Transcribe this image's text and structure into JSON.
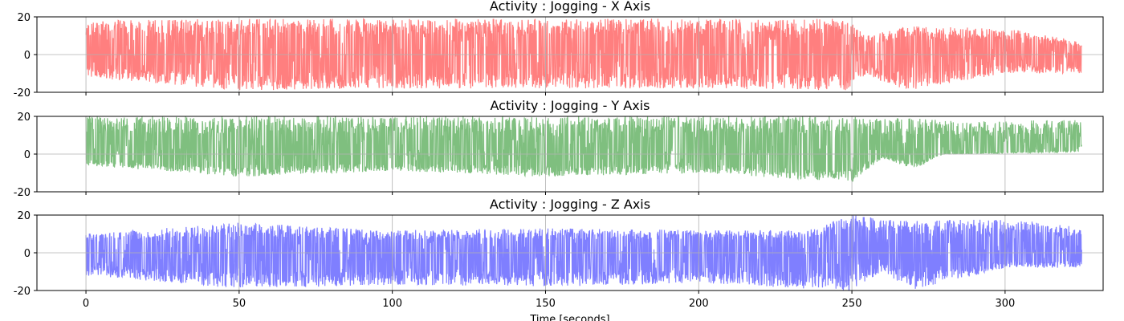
{
  "chart_data": [
    {
      "type": "line",
      "title": "Activity : Jogging - X Axis",
      "color": "#ff0000",
      "opacity": 0.5,
      "xlim": [
        -16,
        332
      ],
      "ylim": [
        -20,
        20
      ],
      "xticks": [
        0,
        50,
        100,
        150,
        200,
        250,
        300
      ],
      "yticks": [
        -20,
        0,
        20
      ],
      "grid": true,
      "x_end": 325,
      "envelope": [
        {
          "x": 0,
          "low": -12,
          "high": 18
        },
        {
          "x": 50,
          "low": -19,
          "high": 19
        },
        {
          "x": 100,
          "low": -18,
          "high": 19
        },
        {
          "x": 150,
          "low": -18,
          "high": 19
        },
        {
          "x": 200,
          "low": -18,
          "high": 19
        },
        {
          "x": 248,
          "low": -19,
          "high": 19
        },
        {
          "x": 255,
          "low": -11,
          "high": 10
        },
        {
          "x": 268,
          "low": -19,
          "high": 15
        },
        {
          "x": 300,
          "low": -10,
          "high": 14
        },
        {
          "x": 325,
          "low": -10,
          "high": 7
        }
      ]
    },
    {
      "type": "line",
      "title": "Activity : Jogging - Y Axis",
      "color": "#008000",
      "opacity": 0.5,
      "xlim": [
        -16,
        332
      ],
      "ylim": [
        -20,
        20
      ],
      "xticks": [
        0,
        50,
        100,
        150,
        200,
        250,
        300
      ],
      "yticks": [
        -20,
        0,
        20
      ],
      "grid": true,
      "x_end": 325,
      "envelope": [
        {
          "x": 0,
          "low": -6,
          "high": 20
        },
        {
          "x": 50,
          "low": -12,
          "high": 20
        },
        {
          "x": 100,
          "low": -9,
          "high": 20
        },
        {
          "x": 150,
          "low": -12,
          "high": 20
        },
        {
          "x": 200,
          "low": -10,
          "high": 20
        },
        {
          "x": 250,
          "low": -15,
          "high": 20
        },
        {
          "x": 260,
          "low": -2,
          "high": 19
        },
        {
          "x": 270,
          "low": -8,
          "high": 19
        },
        {
          "x": 280,
          "low": 0,
          "high": 18
        },
        {
          "x": 325,
          "low": 2,
          "high": 18
        }
      ]
    },
    {
      "type": "line",
      "title": "Activity : Jogging - Z Axis",
      "color": "#0000ff",
      "opacity": 0.5,
      "xlim": [
        -16,
        332
      ],
      "ylim": [
        -20,
        20
      ],
      "xticks": [
        0,
        50,
        100,
        150,
        200,
        250,
        300
      ],
      "yticks": [
        -20,
        0,
        20
      ],
      "grid": true,
      "x_end": 325,
      "envelope": [
        {
          "x": 0,
          "low": -12,
          "high": 10
        },
        {
          "x": 50,
          "low": -19,
          "high": 16
        },
        {
          "x": 100,
          "low": -17,
          "high": 12
        },
        {
          "x": 150,
          "low": -18,
          "high": 13
        },
        {
          "x": 200,
          "low": -16,
          "high": 12
        },
        {
          "x": 235,
          "low": -19,
          "high": 12
        },
        {
          "x": 250,
          "low": -20,
          "high": 20
        },
        {
          "x": 260,
          "low": -10,
          "high": 18
        },
        {
          "x": 270,
          "low": -20,
          "high": 17
        },
        {
          "x": 300,
          "low": -8,
          "high": 18
        },
        {
          "x": 325,
          "low": -8,
          "high": 14
        }
      ]
    }
  ],
  "xlabel": "Time [seconds]"
}
